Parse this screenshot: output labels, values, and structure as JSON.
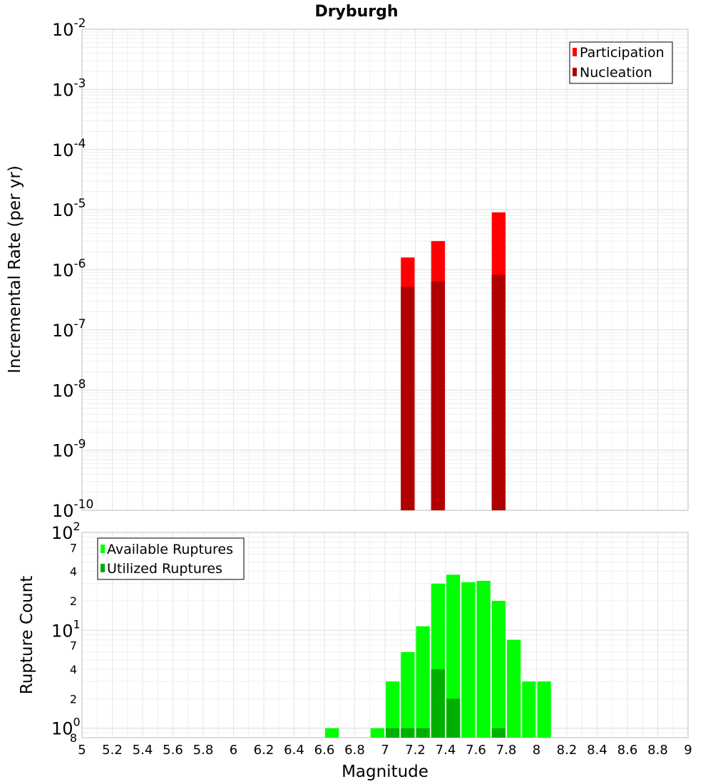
{
  "chart_data": [
    {
      "type": "bar",
      "title": "Dryburgh",
      "xlabel": "",
      "ylabel": "Incremental Rate (per yr)",
      "yscale": "log",
      "ylim": [
        1e-10,
        0.01
      ],
      "xlim": [
        5,
        9
      ],
      "grid": true,
      "legend_position": "top-right",
      "y_tick_labels": [
        {
          "base": "10",
          "exp": "-2",
          "v": 0.01
        },
        {
          "base": "10",
          "exp": "-3",
          "v": 0.001
        },
        {
          "base": "10",
          "exp": "-4",
          "v": 0.0001
        },
        {
          "base": "10",
          "exp": "-5",
          "v": 1e-05
        },
        {
          "base": "10",
          "exp": "-6",
          "v": 1e-06
        },
        {
          "base": "10",
          "exp": "-7",
          "v": 1e-07
        },
        {
          "base": "10",
          "exp": "-8",
          "v": 1e-08
        },
        {
          "base": "10",
          "exp": "-9",
          "v": 1e-09
        },
        {
          "base": "10",
          "exp": "-10",
          "v": 1e-10
        }
      ],
      "series": [
        {
          "name": "Participation",
          "color": "#ff0000",
          "x": [
            7.15,
            7.35,
            7.75
          ],
          "values": [
            1.6e-06,
            3e-06,
            9e-06
          ]
        },
        {
          "name": "Nucleation",
          "color": "#b00000",
          "x": [
            7.15,
            7.35,
            7.75
          ],
          "values": [
            5.2e-07,
            6.4e-07,
            8.3e-07
          ]
        }
      ]
    },
    {
      "type": "bar",
      "title": "",
      "xlabel": "Magnitude",
      "ylabel": "Rupture Count",
      "yscale": "log",
      "ylim": [
        0.8,
        100
      ],
      "xlim": [
        5,
        9
      ],
      "grid": true,
      "legend_position": "top-left",
      "x_tick_labels": [
        "5",
        "5.2",
        "5.4",
        "5.6",
        "5.8",
        "6",
        "6.2",
        "6.4",
        "6.6",
        "6.8",
        "7",
        "7.2",
        "7.4",
        "7.6",
        "7.8",
        "8",
        "8.2",
        "8.4",
        "8.6",
        "8.8",
        "9"
      ],
      "y_tick_labels": [
        {
          "base": "10",
          "exp": "2",
          "v": 100
        },
        {
          "base": "7",
          "exp": "",
          "v": 70
        },
        {
          "base": "4",
          "exp": "",
          "v": 40
        },
        {
          "base": "2",
          "exp": "",
          "v": 20
        },
        {
          "base": "10",
          "exp": "1",
          "v": 10
        },
        {
          "base": "7",
          "exp": "",
          "v": 7
        },
        {
          "base": "4",
          "exp": "",
          "v": 4
        },
        {
          "base": "2",
          "exp": "",
          "v": 2
        },
        {
          "base": "10",
          "exp": "0",
          "v": 1
        },
        {
          "base": "8",
          "exp": "",
          "v": 0.8
        }
      ],
      "series": [
        {
          "name": "Available Ruptures",
          "color": "#00ff00",
          "x": [
            6.65,
            6.95,
            7.05,
            7.15,
            7.25,
            7.35,
            7.45,
            7.55,
            7.65,
            7.75,
            7.85,
            7.95,
            8.05
          ],
          "values": [
            1,
            1,
            3,
            6,
            11,
            30,
            37,
            31,
            32,
            20,
            8,
            3,
            3
          ]
        },
        {
          "name": "Utilized Ruptures",
          "color": "#00b000",
          "x": [
            7.05,
            7.15,
            7.25,
            7.35,
            7.45,
            7.75
          ],
          "values": [
            1,
            1,
            1,
            4,
            2,
            1
          ]
        }
      ]
    }
  ]
}
